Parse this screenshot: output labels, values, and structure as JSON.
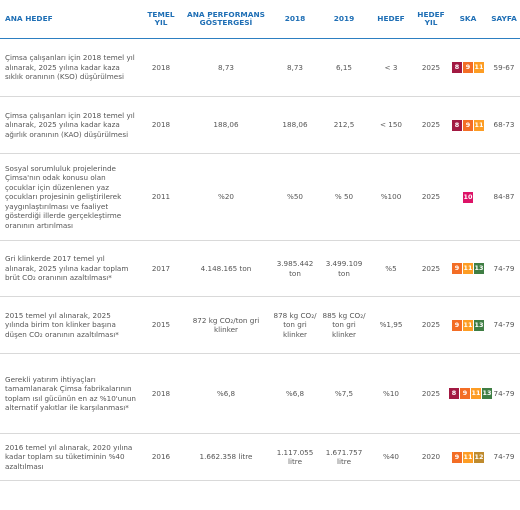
{
  "headers": {
    "h1": "ANA HEDEF",
    "h2": "TEMEL YIL",
    "h3": "ANA PERFORMANS GÖSTERGESİ",
    "h4": "2018",
    "h5": "2019",
    "h6": "HEDEF",
    "h7": "HEDEF YIL",
    "h8": "SKA",
    "h9": "SAYFA"
  },
  "sdg_colors": {
    "8": "#a21942",
    "9": "#f36d25",
    "10": "#dd1367",
    "11": "#fd9d24",
    "12": "#bf8b2e",
    "13": "#3f7e44"
  },
  "rows": [
    {
      "desc": "Çimsa çalışanları için 2018 temel yıl alınarak, 2025 yılına kadar kaza sıklık oranının (KSO) düşürülmesi",
      "base": "2018",
      "kpi": "8,73",
      "y2018": "8,73",
      "y2019": "6,15",
      "target": "< 3",
      "target_year": "2025",
      "sdg": [
        "8",
        "9",
        "11"
      ],
      "page": "59-67"
    },
    {
      "desc": "Çimsa çalışanları için 2018 temel yıl alınarak, 2025 yılına kadar kaza ağırlık oranının (KAO) düşürülmesi",
      "base": "2018",
      "kpi": "188,06",
      "y2018": "188,06",
      "y2019": "212,5",
      "target": "< 150",
      "target_year": "2025",
      "sdg": [
        "8",
        "9",
        "11"
      ],
      "page": "68-73"
    },
    {
      "desc": "Sosyal sorumluluk projelerinde Çimsa'nın odak konusu olan çocuklar için düzenlenen yaz çocukları projesinin geliştirilerek yaygınlaştırılması ve faaliyet gösterdiği illerde gerçekleştirme oranının artırılması",
      "base": "2011",
      "kpi": "%20",
      "y2018": "%50",
      "y2019": "% 50",
      "target": "%100",
      "target_year": "2025",
      "sdg": [
        "10"
      ],
      "page": "84-87"
    },
    {
      "desc": "Gri klinkerde 2017 temel yıl alınarak, 2025 yılına kadar toplam brüt CO₂ oranının azaltılması*",
      "base": "2017",
      "kpi": "4.148.165 ton",
      "y2018": "3.985.442 ton",
      "y2019": "3.499.109 ton",
      "target": "%5",
      "target_year": "2025",
      "sdg": [
        "9",
        "11",
        "13"
      ],
      "page": "74-79"
    },
    {
      "desc": "2015 temel yıl alınarak, 2025 yılında birim ton klinker başına düşen CO₂ oranının azaltılması*",
      "base": "2015",
      "kpi": "872 kg CO₂/ton gri klinker",
      "y2018": "878 kg CO₂/ ton gri klinker",
      "y2019": "885 kg CO₂/ ton gri klinker",
      "target": "%1,95",
      "target_year": "2025",
      "sdg": [
        "9",
        "11",
        "13"
      ],
      "page": "74-79"
    },
    {
      "desc": "Gerekli yatırım ihtiyaçları tamamlanarak Çimsa fabrikalarının toplam ısıl gücünün en az %10'unun alternatif yakıtlar ile karşılanması*",
      "base": "2018",
      "kpi": "%6,8",
      "y2018": "%6,8",
      "y2019": "%7,5",
      "target": "%10",
      "target_year": "2025",
      "sdg": [
        "8",
        "9",
        "11",
        "13"
      ],
      "page": "74-79"
    },
    {
      "desc": "2016 temel yıl alınarak, 2020 yılına kadar toplam su tüketiminin %40 azaltılması",
      "base": "2016",
      "kpi": "1.662.358 litre",
      "y2018": "1.117.055 litre",
      "y2019": "1.671.757 litre",
      "target": "%40",
      "target_year": "2020",
      "sdg": [
        "9",
        "11",
        "12"
      ],
      "page": "74-79"
    }
  ]
}
